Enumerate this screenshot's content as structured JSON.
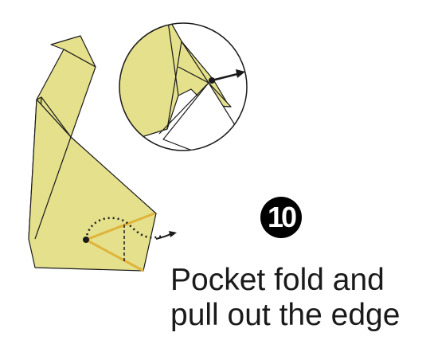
{
  "step": {
    "number": "10"
  },
  "instruction": {
    "line1": "Pocket fold and",
    "line2": "pull out the edge"
  },
  "colors": {
    "paper": "#e4e08c",
    "paper_shadow": "#d2cd6e",
    "fold_line": "#e0b43a",
    "outline": "#1a1a1a"
  }
}
